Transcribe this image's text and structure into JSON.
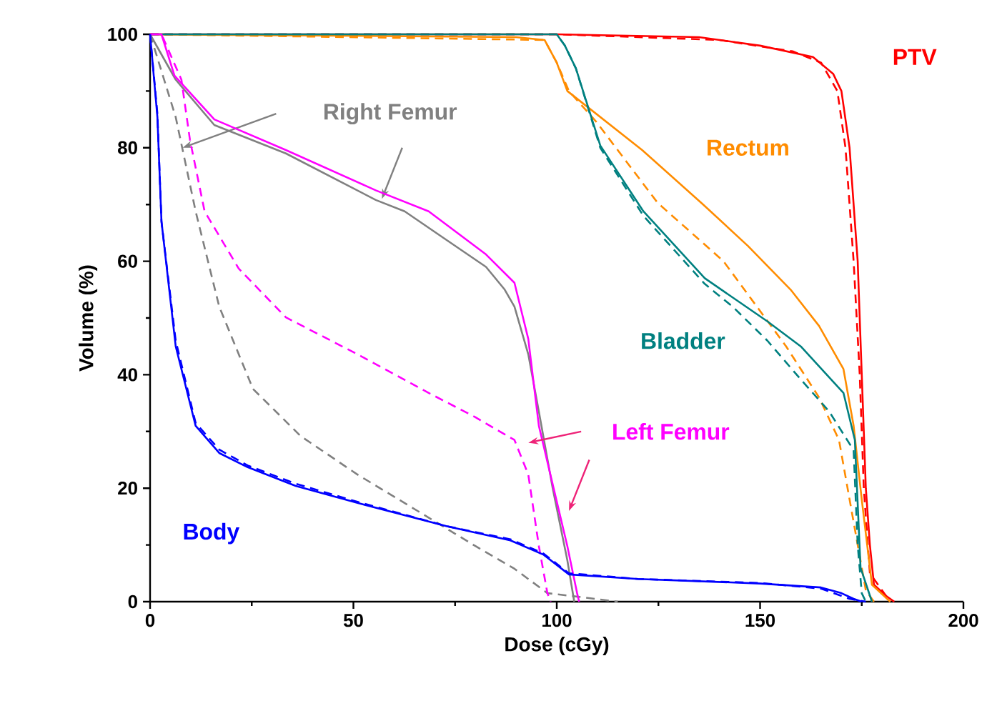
{
  "chart_data": {
    "type": "line",
    "xlabel": "Dose (cGy)",
    "ylabel": "Volume (%)",
    "xlim": [
      0,
      200
    ],
    "ylim": [
      0,
      100
    ],
    "xticks": [
      0,
      50,
      100,
      150,
      200
    ],
    "yticks": [
      0,
      20,
      40,
      60,
      80,
      100
    ],
    "grid": false,
    "legend": false,
    "marker": "none",
    "series": [
      {
        "name": "PTV",
        "color": "#ff0000",
        "line_style": "solid",
        "x": [
          0,
          100,
          135,
          150,
          163,
          168,
          170,
          172,
          174,
          175,
          176,
          177,
          178,
          181,
          183
        ],
        "values": [
          100,
          100,
          99.5,
          98,
          96,
          93,
          90,
          80,
          60,
          40,
          20,
          10,
          3,
          1,
          0
        ]
      },
      {
        "color": "#ff0000",
        "line_style": "dashed",
        "x": [
          0,
          100,
          140,
          158,
          165,
          169,
          171,
          173,
          174.5,
          175.5,
          177,
          182
        ],
        "values": [
          100,
          100,
          99,
          97,
          95,
          90,
          80,
          60,
          40,
          20,
          5,
          0
        ]
      },
      {
        "name": "Rectum",
        "color": "#ff8c00",
        "line_style": "solid",
        "x": [
          0,
          90,
          97,
          100,
          102.6,
          121,
          136,
          147,
          157.5,
          164.5,
          170.5,
          173,
          175,
          177.5,
          182
        ],
        "values": [
          100,
          99.5,
          99,
          95,
          90,
          79.6,
          70,
          62.7,
          55,
          48.6,
          41,
          31,
          18,
          3,
          0
        ]
      },
      {
        "color": "#ff8c00",
        "line_style": "dashed",
        "x": [
          0,
          97,
          100,
          103,
          109.7,
          124.8,
          141,
          156.4,
          164.5,
          169.4,
          174,
          176,
          178
        ],
        "values": [
          100,
          99,
          95,
          90,
          84.6,
          70.3,
          60,
          45,
          36,
          28.5,
          10,
          2,
          0
        ]
      },
      {
        "name": "Bladder",
        "color": "#008080",
        "line_style": "solid",
        "x": [
          0,
          100,
          102,
          104.7,
          110.7,
          121.3,
          136.4,
          151.8,
          160,
          170.5,
          173.3,
          174.7,
          177.5
        ],
        "values": [
          100,
          100,
          98,
          94,
          80.4,
          68.8,
          57,
          49.4,
          45,
          36.8,
          28.5,
          6,
          0
        ]
      },
      {
        "color": "#008080",
        "line_style": "dashed",
        "x": [
          0,
          100,
          102,
          104.7,
          110.7,
          121.3,
          136.4,
          143.4,
          151.8,
          159,
          167,
          173,
          174,
          175,
          176
        ],
        "values": [
          100,
          100,
          98,
          94,
          80,
          68,
          56,
          51.9,
          46,
          40,
          33.5,
          26.7,
          10,
          1.5,
          0
        ]
      },
      {
        "name": "Right Femur",
        "color": "#808080",
        "line_style": "solid",
        "x": [
          0,
          6.3,
          15.8,
          33.4,
          55.5,
          62.6,
          73,
          82.6,
          87.2,
          89.6,
          93,
          95.6,
          99,
          102.6,
          104.3
        ],
        "values": [
          100,
          92,
          84,
          79,
          70.8,
          68.8,
          63.7,
          59,
          55,
          52,
          43.6,
          33.5,
          20,
          7.3,
          0
        ]
      },
      {
        "color": "#808080",
        "line_style": "dashed",
        "x": [
          0,
          6.3,
          11.2,
          17,
          25.3,
          37,
          51,
          66,
          80,
          89.6,
          97.7,
          103.7,
          115
        ],
        "values": [
          100,
          85.4,
          68.8,
          52,
          37.5,
          29.2,
          22.4,
          15.9,
          9.8,
          5.8,
          1.5,
          1,
          0
        ]
      },
      {
        "name": "Left Femur",
        "color": "#ff00ff",
        "line_style": "solid",
        "x": [
          0,
          2.8,
          6,
          15.8,
          33.4,
          55.5,
          68.5,
          82.6,
          89.6,
          93,
          95.6,
          102.6,
          105,
          105.5
        ],
        "values": [
          100,
          100,
          92.7,
          85,
          79.6,
          72.5,
          68.8,
          61.2,
          56.2,
          46.3,
          31,
          9.8,
          1.5,
          0
        ]
      },
      {
        "color": "#ff00ff",
        "line_style": "dashed",
        "x": [
          0,
          2.8,
          7.7,
          9.8,
          13.4,
          21.8,
          33.4,
          51,
          68.5,
          80,
          89.6,
          93,
          95.6,
          97.7,
          98.5
        ],
        "values": [
          100,
          100,
          92,
          81.4,
          68.8,
          58.7,
          50.1,
          43.6,
          36.8,
          32.5,
          28.5,
          22.4,
          9.8,
          1.5,
          0
        ]
      },
      {
        "name": "Body",
        "color": "#0000ff",
        "line_style": "solid",
        "x": [
          0,
          1.8,
          2.8,
          6.3,
          11.2,
          17,
          24,
          35.8,
          51,
          73,
          88.6,
          96.7,
          103,
          120,
          150,
          165,
          170,
          173,
          175
        ],
        "values": [
          100,
          85.4,
          67,
          45,
          31,
          26.2,
          23.7,
          20.4,
          17.4,
          13.3,
          10.8,
          8.3,
          4.8,
          4,
          3.2,
          2.5,
          1.5,
          0.5,
          0
        ]
      },
      {
        "color": "#0000ff",
        "line_style": "dashed",
        "x": [
          0,
          1.8,
          2.8,
          6.3,
          11.2,
          17,
          24,
          35.8,
          51,
          73,
          88.6,
          96.7,
          103,
          120,
          150,
          165,
          172,
          176
        ],
        "values": [
          100,
          86,
          67,
          46,
          31.5,
          26.8,
          24,
          20.8,
          17.6,
          13.3,
          11,
          8.5,
          5,
          4,
          3.3,
          2.3,
          0.5,
          0
        ]
      }
    ]
  }
}
